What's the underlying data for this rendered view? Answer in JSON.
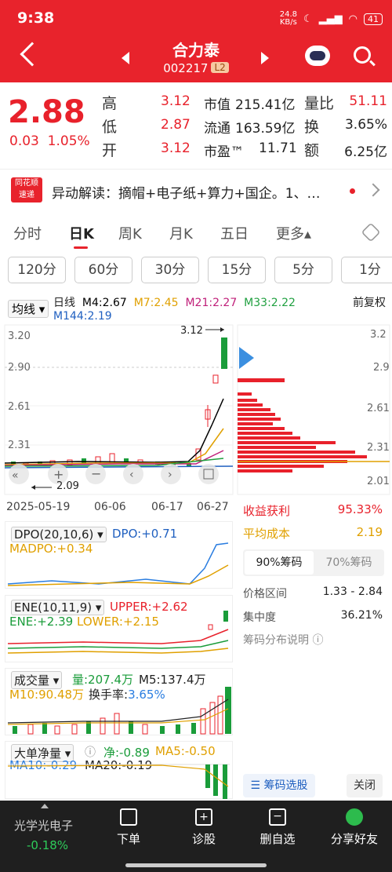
{
  "status": {
    "time": "9:38",
    "net_speed": "24.8",
    "net_unit": "KB/s",
    "battery": "41"
  },
  "header": {
    "name": "合力泰",
    "code": "002217",
    "level": "L2"
  },
  "quote": {
    "price": "2.88",
    "change": "0.03",
    "change_pct": "1.05%",
    "high_label": "高",
    "high": "3.12",
    "low_label": "低",
    "low": "2.87",
    "open_label": "开",
    "open": "3.12",
    "mktcap_label": "市值",
    "mktcap": "215.41亿",
    "float_label": "流通",
    "float": "163.59亿",
    "pe_label": "市盈™",
    "pe": "11.71",
    "vr_label": "量比",
    "vr": "51.11",
    "turnover_label": "换",
    "turnover": "3.65%",
    "amount_label": "额",
    "amount": "6.25亿"
  },
  "news": {
    "logo_top": "同花顺",
    "logo_bottom": "速递",
    "text": "异动解读：摘帽+电子纸+算力+国企。1、…"
  },
  "tabs": [
    "分时",
    "日K",
    "周K",
    "月K",
    "五日",
    "更多▴"
  ],
  "minute_buttons": [
    "120分",
    "60分",
    "30分",
    "15分",
    "5分",
    "1分"
  ],
  "ma_bar": {
    "selector": "均线",
    "period": "日线",
    "ma4": "M4:2.67",
    "ma7": "M7:2.45",
    "ma21": "M21:2.27",
    "ma33": "M33:2.22",
    "ma144": "M144:2.19",
    "adjust": "前复权"
  },
  "kline": {
    "y_ticks": [
      "3.20",
      "2.90",
      "2.61",
      "2.31"
    ],
    "high_marker": "3.12",
    "low_marker": "2.09",
    "x_ticks": [
      "2025-05-19",
      "06-06",
      "06-17",
      "06-27"
    ],
    "chip_ticks": [
      "3.2",
      "2.9",
      "2.61",
      "2.31",
      "2.01"
    ]
  },
  "chips": {
    "profit_label": "收益获利",
    "profit": "95.33%",
    "cost_label": "平均成本",
    "cost": "2.19",
    "tab90": "90%筹码",
    "tab70": "70%筹码",
    "range_label": "价格区间",
    "range": "1.33 - 2.84",
    "conc_label": "集中度",
    "conc": "36.21%",
    "help": "筹码分布说明 ⓘ",
    "select_btn": "筹码选股",
    "close_btn": "关闭"
  },
  "dpo": {
    "name": "DPO(20,10,6)",
    "dpo": "DPO:+0.71",
    "madpo": "MADPO:+0.34"
  },
  "ene": {
    "name": "ENE(10,11,9)",
    "upper": "UPPER:+2.62",
    "ene": "ENE:+2.39",
    "lower": "LOWER:+2.15"
  },
  "volume": {
    "name": "成交量",
    "vol": "量:207.4万",
    "m5": "M5:137.4万",
    "m10": "M10:90.48万",
    "turn_label": "换手率:",
    "turn": "3.65%"
  },
  "bigorder": {
    "name": "大单净量",
    "net": "净:-0.89",
    "ma5": "MA5:-0.50",
    "ma10": "MA10:-0.29",
    "ma20": "MA20:-0.19"
  },
  "bottom": {
    "sector": "光学光电子",
    "sector_pct": "-0.18%",
    "order": "下单",
    "diagnose": "诊股",
    "remove": "删自选",
    "share": "分享好友"
  },
  "colors": {
    "up": "#e8212b",
    "down": "#1a9c3a",
    "ma4": "#000000",
    "ma7": "#e0a000",
    "ma21": "#c0207a",
    "ma33": "#20a040",
    "ma144": "#2060c0"
  }
}
